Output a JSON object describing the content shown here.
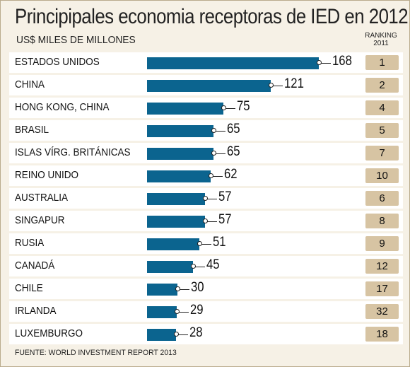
{
  "chart_data": {
    "type": "bar",
    "title": "Principipales economia receptoras de IED en 2012",
    "subtitle": "US$ MILES DE MILLONES",
    "ranking_header": [
      "RANKING",
      "2011"
    ],
    "source": "FUENTE: WORLD INVESTMENT REPORT 2013",
    "categories": [
      "ESTADOS UNIDOS",
      "CHINA",
      "HONG KONG, CHINA",
      "BRASIL",
      "ISLAS VÍRG. BRITÁNICAS",
      "REINO UNIDO",
      "AUSTRALIA",
      "SINGAPUR",
      "RUSIA",
      "CANADÁ",
      "CHILE",
      "IRLANDA",
      "LUXEMBURGO"
    ],
    "values": [
      168,
      121,
      75,
      65,
      65,
      62,
      57,
      57,
      51,
      45,
      30,
      29,
      28
    ],
    "ranking_2011": [
      "1",
      "2",
      "4",
      "5",
      "7",
      "10",
      "6",
      "8",
      "9",
      "12",
      "17",
      "32",
      "18"
    ],
    "xlim": [
      0,
      168
    ],
    "colors": {
      "bar": "#0b648f",
      "rank_box": "#d7c4a3",
      "panel": "#f6f1e6",
      "row": "#ffffff"
    }
  }
}
